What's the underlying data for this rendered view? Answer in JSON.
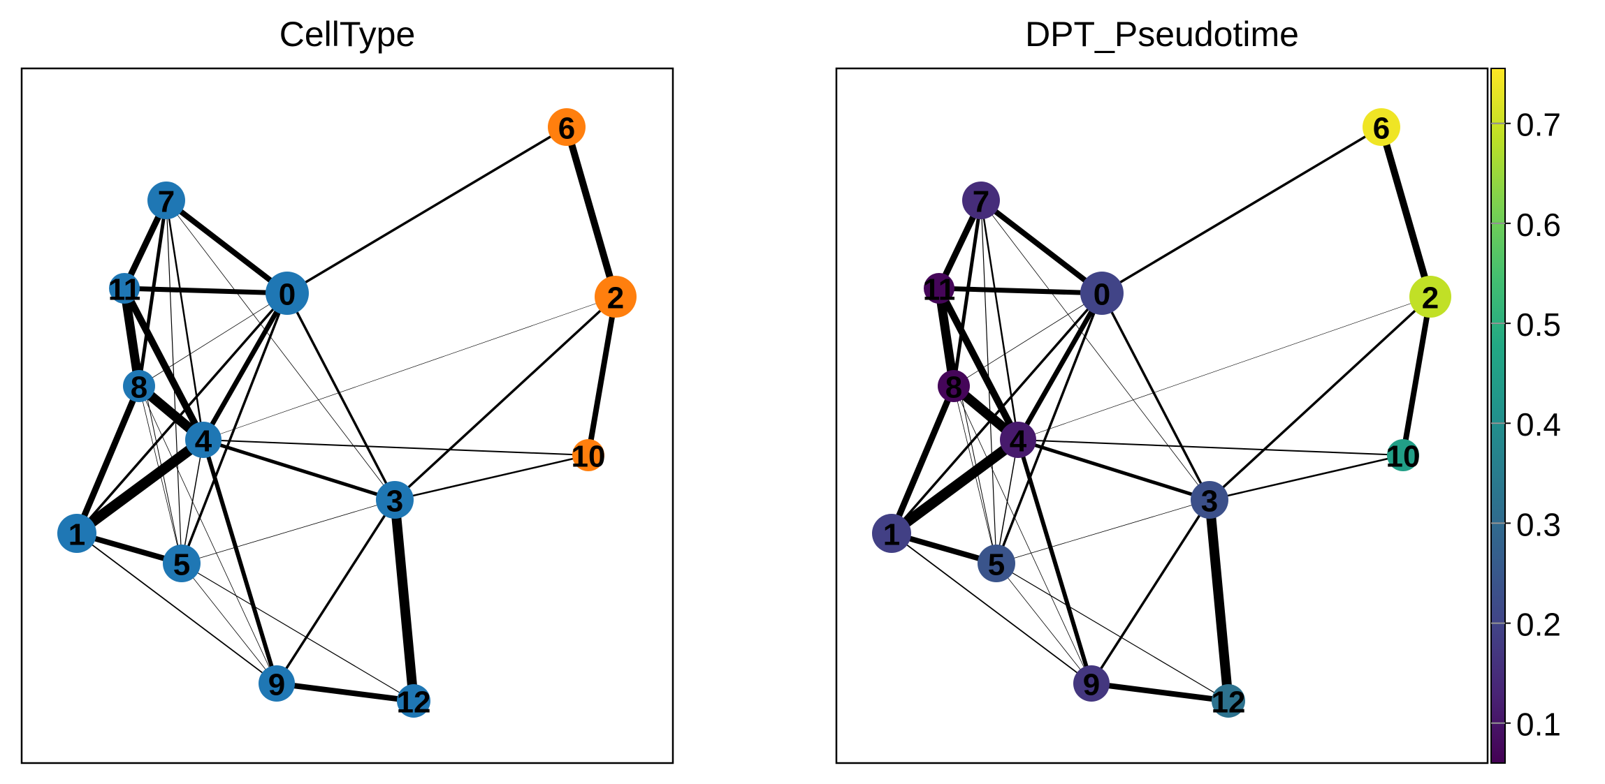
{
  "panels": [
    {
      "title": "CellType",
      "color_mode": "celltype"
    },
    {
      "title": "DPT_Pseudotime",
      "color_mode": "pseudotime"
    }
  ],
  "colors": {
    "celltype_blue": "#1f77b4",
    "celltype_orange": "#ff7f0e",
    "edge": "#000000"
  },
  "colorbar": {
    "colormap": "viridis",
    "range": [
      0.06,
      0.755
    ],
    "ticks": [
      "0.1",
      "0.2",
      "0.3",
      "0.4",
      "0.5",
      "0.6",
      "0.7"
    ]
  },
  "nodes": [
    {
      "id": "0",
      "celltype": "blue",
      "pseudotime": 0.2
    },
    {
      "id": "1",
      "celltype": "blue",
      "pseudotime": 0.19
    },
    {
      "id": "2",
      "celltype": "orange",
      "pseudotime": 0.69
    },
    {
      "id": "3",
      "celltype": "blue",
      "pseudotime": 0.23
    },
    {
      "id": "4",
      "celltype": "blue",
      "pseudotime": 0.11
    },
    {
      "id": "5",
      "celltype": "blue",
      "pseudotime": 0.24
    },
    {
      "id": "6",
      "celltype": "orange",
      "pseudotime": 0.74
    },
    {
      "id": "7",
      "celltype": "blue",
      "pseudotime": 0.15
    },
    {
      "id": "8",
      "celltype": "blue",
      "pseudotime": 0.07
    },
    {
      "id": "9",
      "celltype": "blue",
      "pseudotime": 0.17
    },
    {
      "id": "10",
      "celltype": "orange",
      "pseudotime": 0.45
    },
    {
      "id": "11",
      "celltype": "blue",
      "pseudotime": 0.07
    },
    {
      "id": "12",
      "celltype": "blue",
      "pseudotime": 0.32
    }
  ],
  "edges": [
    {
      "a": "7",
      "b": "11",
      "weight": 9
    },
    {
      "a": "7",
      "b": "8",
      "weight": 5
    },
    {
      "a": "7",
      "b": "0",
      "weight": 8
    },
    {
      "a": "7",
      "b": "4",
      "weight": 2.5
    },
    {
      "a": "7",
      "b": "5",
      "weight": 1.2
    },
    {
      "a": "7",
      "b": "3",
      "weight": 0.8
    },
    {
      "a": "11",
      "b": "0",
      "weight": 7
    },
    {
      "a": "11",
      "b": "8",
      "weight": 13
    },
    {
      "a": "11",
      "b": "4",
      "weight": 10
    },
    {
      "a": "11",
      "b": "5",
      "weight": 1
    },
    {
      "a": "0",
      "b": "6",
      "weight": 3.5
    },
    {
      "a": "0",
      "b": "4",
      "weight": 7
    },
    {
      "a": "0",
      "b": "5",
      "weight": 3.5
    },
    {
      "a": "0",
      "b": "3",
      "weight": 3.5
    },
    {
      "a": "0",
      "b": "1",
      "weight": 3.5
    },
    {
      "a": "0",
      "b": "8",
      "weight": 0.8
    },
    {
      "a": "6",
      "b": "2",
      "weight": 10
    },
    {
      "a": "2",
      "b": "10",
      "weight": 8
    },
    {
      "a": "2",
      "b": "3",
      "weight": 3.5
    },
    {
      "a": "2",
      "b": "4",
      "weight": 0.6
    },
    {
      "a": "8",
      "b": "4",
      "weight": 14
    },
    {
      "a": "8",
      "b": "1",
      "weight": 9
    },
    {
      "a": "8",
      "b": "5",
      "weight": 0.8
    },
    {
      "a": "8",
      "b": "9",
      "weight": 0.8
    },
    {
      "a": "4",
      "b": "1",
      "weight": 15
    },
    {
      "a": "4",
      "b": "3",
      "weight": 5
    },
    {
      "a": "4",
      "b": "10",
      "weight": 2
    },
    {
      "a": "4",
      "b": "9",
      "weight": 6
    },
    {
      "a": "4",
      "b": "5",
      "weight": 1.5
    },
    {
      "a": "3",
      "b": "10",
      "weight": 2.5
    },
    {
      "a": "3",
      "b": "12",
      "weight": 14
    },
    {
      "a": "3",
      "b": "9",
      "weight": 3.5
    },
    {
      "a": "3",
      "b": "5",
      "weight": 0.8
    },
    {
      "a": "1",
      "b": "5",
      "weight": 8
    },
    {
      "a": "1",
      "b": "9",
      "weight": 1.8
    },
    {
      "a": "5",
      "b": "12",
      "weight": 1.2
    },
    {
      "a": "5",
      "b": "9",
      "weight": 0.8
    },
    {
      "a": "9",
      "b": "12",
      "weight": 8
    }
  ]
}
